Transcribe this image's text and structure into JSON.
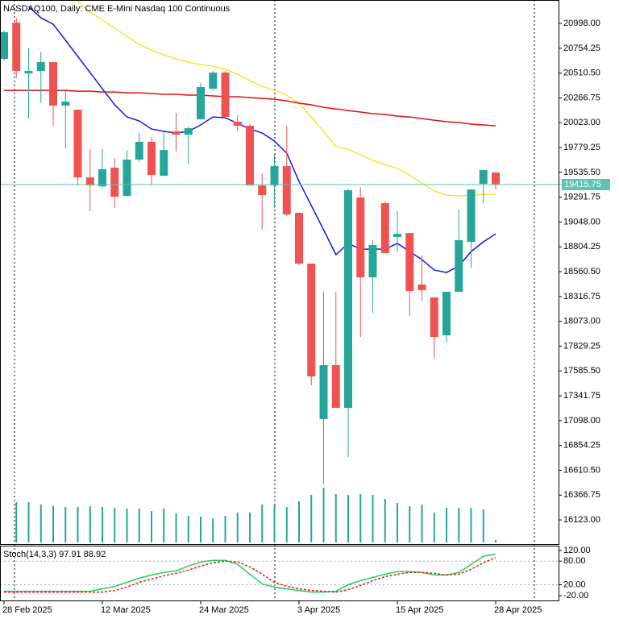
{
  "chart_data": [
    {
      "type": "candlestick",
      "title": "NASDAQ100, Daily:  CME E-Mini Nasdaq 100 Continuous",
      "categories": [
        "28 Feb 2025",
        null,
        null,
        null,
        null,
        null,
        null,
        null,
        "12 Mar 2025",
        null,
        null,
        null,
        null,
        null,
        null,
        null,
        "24 Mar 2025",
        null,
        null,
        null,
        null,
        null,
        null,
        null,
        "3 Apr 2025",
        null,
        null,
        null,
        null,
        null,
        null,
        null,
        "15 Apr 2025",
        null,
        null,
        null,
        null,
        null,
        null,
        null,
        "28 Apr 2025"
      ],
      "open": [
        20650,
        21006,
        20507,
        20531,
        20618,
        20191,
        20151,
        19486,
        19399,
        19582,
        19304,
        19661,
        19835,
        19502,
        19937,
        19906,
        20056,
        20357,
        20515,
        20033,
        19993,
        19407,
        19407,
        19597,
        19138,
        18640,
        17112,
        17643,
        17223,
        19289,
        18505,
        19233,
        18901,
        18940,
        18434,
        18307,
        17935,
        18363,
        18853,
        19423,
        19534
      ],
      "high": [
        20927,
        21053,
        20753,
        20721,
        20618,
        20341,
        20151,
        19763,
        19763,
        19676,
        19755,
        19922,
        19882,
        19930,
        20120,
        19985,
        20412,
        20531,
        20531,
        20096,
        20009,
        19526,
        19708,
        19993,
        19138,
        18640,
        18363,
        18363,
        19376,
        19391,
        18869,
        19249,
        19154,
        18940,
        18719,
        18307,
        18363,
        19170,
        19368,
        19558,
        19534
      ],
      "low": [
        20634,
        20460,
        20064,
        20215,
        19993,
        19771,
        19407,
        19154,
        19383,
        19186,
        19304,
        19637,
        19407,
        19502,
        19740,
        19621,
        20056,
        20341,
        20080,
        19945,
        19407,
        18972,
        19186,
        19107,
        18624,
        17445,
        16479,
        17223,
        16740,
        17919,
        18157,
        18742,
        18758,
        18125,
        18275,
        17706,
        17864,
        18363,
        18600,
        19233,
        19368
      ],
      "close": [
        20911,
        20531,
        20531,
        20618,
        20191,
        20230,
        19486,
        19407,
        19566,
        19296,
        19661,
        19835,
        19510,
        19755,
        19906,
        19969,
        20373,
        20515,
        20080,
        19993,
        19407,
        19312,
        19597,
        19122,
        18640,
        17532,
        17643,
        17223,
        19360,
        18505,
        18822,
        18742,
        18932,
        18370,
        18378,
        17919,
        18363,
        18869,
        19368,
        19558,
        19415.75
      ],
      "volume": [
        null,
        50,
        50,
        47,
        45,
        44,
        44,
        45,
        44,
        43,
        42,
        42,
        39,
        42,
        36,
        33,
        32,
        30,
        33,
        37,
        37,
        47,
        46,
        44,
        51,
        59,
        68,
        60,
        59,
        60,
        59,
        54,
        49,
        45,
        47,
        37,
        43,
        43,
        43,
        41,
        3
      ],
      "up_color": "#26a69a",
      "down_color": "#ef5350",
      "volume_color": "#26a69a",
      "last_price_color": "#5fc3b0",
      "series": [
        {
          "color": "#1515e8",
          "values": [
            null,
            null,
            21164,
            21053,
            20990,
            20832,
            20674,
            20515,
            20357,
            20199,
            20080,
            20041,
            19961,
            19938,
            19922,
            19938,
            20001,
            20080,
            20072,
            20017,
            19961,
            19922,
            19843,
            19724,
            19447,
            19209,
            18972,
            18727,
            18838,
            18782,
            18782,
            18782,
            18838,
            18758,
            18679,
            18576,
            18552,
            18616,
            18758,
            18853,
            18932
          ]
        },
        {
          "color": "#f2e73a",
          "values": [
            null,
            null,
            null,
            null,
            null,
            null,
            21212,
            21109,
            21030,
            20951,
            20871,
            20792,
            20737,
            20689,
            20650,
            20618,
            20594,
            20579,
            20547,
            20499,
            20436,
            20381,
            20341,
            20294,
            20215,
            20080,
            19938,
            19787,
            19763,
            19708,
            19653,
            19613,
            19574,
            19510,
            19431,
            19352,
            19312,
            19304,
            19312,
            19320,
            19320
          ]
        },
        {
          "color": "#e01010",
          "values": [
            20341,
            20341,
            20341,
            20341,
            20341,
            20341,
            20333,
            20333,
            20325,
            20325,
            20317,
            20317,
            20310,
            20302,
            20302,
            20294,
            20294,
            20286,
            20278,
            20278,
            20270,
            20262,
            20254,
            20238,
            20215,
            20199,
            20175,
            20159,
            20143,
            20128,
            20112,
            20104,
            20088,
            20080,
            20064,
            20048,
            20033,
            20025,
            20009,
            20001,
            19993
          ]
        }
      ],
      "ylim": [
        15886,
        21228
      ],
      "yticks": [
        {
          "value": 20998,
          "label": "20998.00"
        },
        {
          "value": 20754.25,
          "label": "20754.25"
        },
        {
          "value": 20510.5,
          "label": "20510.50"
        },
        {
          "value": 20266.75,
          "label": "20266.75"
        },
        {
          "value": 20023,
          "label": "20023.00"
        },
        {
          "value": 19779.25,
          "label": "19779.25"
        },
        {
          "value": 19535.5,
          "label": "19535.50"
        },
        {
          "value": 19291.75,
          "label": "19291.75"
        },
        {
          "value": 19048,
          "label": "19048.00"
        },
        {
          "value": 18804.25,
          "label": "18804.25"
        },
        {
          "value": 18560.5,
          "label": "18560.50"
        },
        {
          "value": 18316.75,
          "label": "18316.75"
        },
        {
          "value": 18073,
          "label": "18073.00"
        },
        {
          "value": 17829.25,
          "label": "17829.25"
        },
        {
          "value": 17585.5,
          "label": "17585.50"
        },
        {
          "value": 17341.75,
          "label": "17341.75"
        },
        {
          "value": 17098,
          "label": "17098.00"
        },
        {
          "value": 16854.25,
          "label": "16854.25"
        },
        {
          "value": 16610.5,
          "label": "16610.50"
        },
        {
          "value": 16366.75,
          "label": "16366.75"
        },
        {
          "value": 16123,
          "label": "16123.00"
        }
      ],
      "grid": false
    },
    {
      "type": "line",
      "title": "Stoch(14,3,3)",
      "series": [
        {
          "color": "#20d060",
          "values": [
            3.4,
            3.4,
            3.4,
            3.4,
            3.4,
            3.4,
            3.4,
            3.4,
            9.6,
            15.9,
            26.2,
            36.6,
            44.8,
            51.1,
            55.2,
            67.6,
            78,
            82.1,
            82.1,
            71.8,
            46.9,
            22.1,
            13.8,
            9.6,
            5.5,
            1.4,
            1.4,
            3.4,
            20,
            30.4,
            38.6,
            46.9,
            53.1,
            53.1,
            51.1,
            44.8,
            44.8,
            51.1,
            71.8,
            92.5,
            97.91
          ]
        },
        {
          "color": "#e02020",
          "dash": true,
          "values": [
            1.4,
            1.4,
            1.4,
            1.4,
            1.4,
            1.4,
            1.4,
            1.4,
            1.4,
            5.5,
            13.8,
            26.2,
            34.5,
            42.8,
            49,
            57.3,
            67.6,
            75.9,
            80,
            78,
            65.5,
            46.9,
            26.2,
            15.9,
            9.6,
            5.5,
            3.4,
            1.4,
            7.6,
            17.9,
            30.4,
            40.7,
            46.9,
            51.1,
            51.1,
            49,
            44.8,
            46.9,
            59.3,
            75.9,
            88.92
          ]
        }
      ],
      "ylim": [
        -20,
        119.4
      ],
      "yticks": [
        {
          "value": 120,
          "label": "120.00"
        },
        {
          "value": 80,
          "label": "80.00"
        },
        {
          "value": 20,
          "label": "20.00"
        },
        {
          "value": -20,
          "label": "-20.00"
        }
      ]
    }
  ]
}
